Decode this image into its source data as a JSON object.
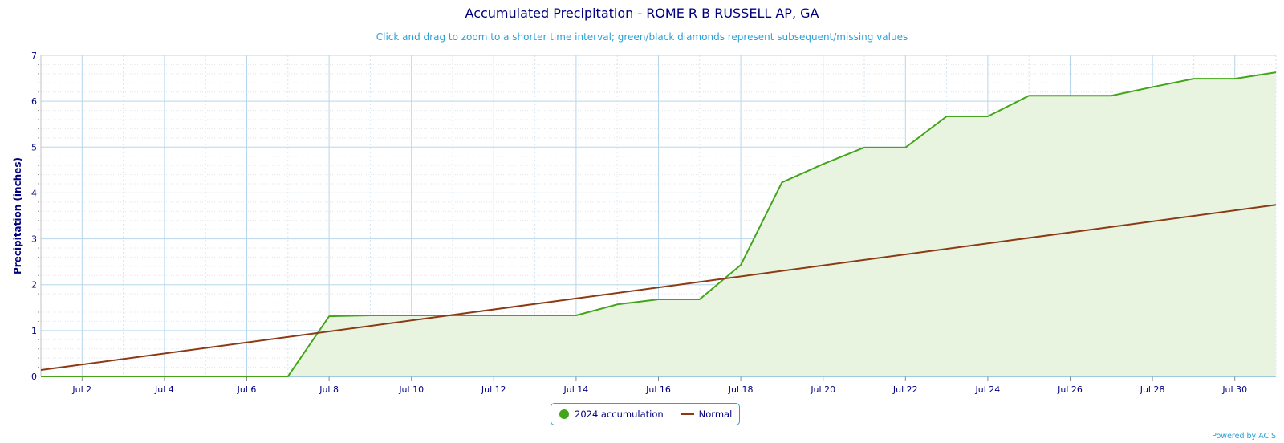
{
  "chart_data": {
    "type": "area",
    "title": "Accumulated Precipitation - ROME R B RUSSELL AP, GA",
    "subtitle": "Click and drag to zoom to a shorter time interval; green/black diamonds represent subsequent/missing values",
    "xlabel": "",
    "ylabel": "Precipitation (inches)",
    "xlim": [
      1,
      31.0
    ],
    "ylim": [
      0,
      7
    ],
    "x_ticks": [
      {
        "day": 2,
        "label": "Jul 2"
      },
      {
        "day": 4,
        "label": "Jul 4"
      },
      {
        "day": 6,
        "label": "Jul 6"
      },
      {
        "day": 8,
        "label": "Jul 8"
      },
      {
        "day": 10,
        "label": "Jul 10"
      },
      {
        "day": 12,
        "label": "Jul 12"
      },
      {
        "day": 14,
        "label": "Jul 14"
      },
      {
        "day": 16,
        "label": "Jul 16"
      },
      {
        "day": 18,
        "label": "Jul 18"
      },
      {
        "day": 20,
        "label": "Jul 20"
      },
      {
        "day": 22,
        "label": "Jul 22"
      },
      {
        "day": 24,
        "label": "Jul 24"
      },
      {
        "day": 26,
        "label": "Jul 26"
      },
      {
        "day": 28,
        "label": "Jul 28"
      },
      {
        "day": 30,
        "label": "Jul 30"
      }
    ],
    "y_ticks": [
      0,
      1,
      2,
      3,
      4,
      5,
      6,
      7
    ],
    "grid": true,
    "legend_position": "bottom-center",
    "series": [
      {
        "name": "2024 accumulation",
        "color": "#44a51c",
        "fill": "#e8f4e0",
        "x": [
          1,
          2,
          3,
          4,
          5,
          6,
          7,
          8,
          9,
          10,
          11,
          12,
          13,
          14,
          15,
          16,
          17,
          18,
          19,
          20,
          21,
          22,
          23,
          24,
          25,
          26,
          27,
          28,
          29,
          30,
          31
        ],
        "values": [
          0,
          0,
          0,
          0,
          0,
          0,
          0,
          1.31,
          1.33,
          1.33,
          1.33,
          1.33,
          1.33,
          1.33,
          1.57,
          1.68,
          1.68,
          2.43,
          4.23,
          4.63,
          4.99,
          4.99,
          5.67,
          5.67,
          6.12,
          6.12,
          6.12,
          6.31,
          6.49,
          6.49,
          6.63
        ]
      },
      {
        "name": "Normal",
        "color": "#8b3a14",
        "x": [
          1,
          31
        ],
        "values": [
          0.14,
          3.74
        ]
      }
    ]
  },
  "credit": "Powered by ACIS"
}
